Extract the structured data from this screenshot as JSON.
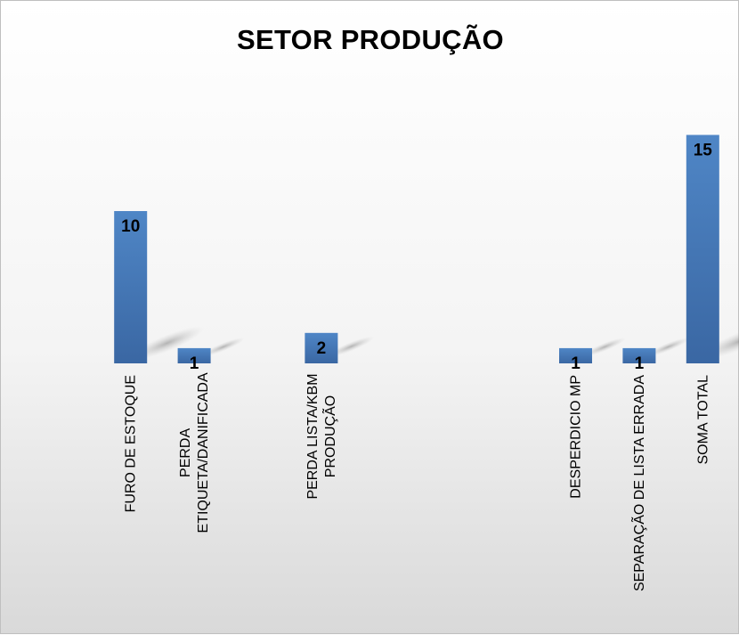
{
  "chart_data": {
    "type": "bar",
    "title": "SETOR PRODUÇÃO",
    "xlabel": "",
    "ylabel": "",
    "grid": false,
    "legend": "none",
    "ylim": [
      0,
      16
    ],
    "categories": [
      "FURO DE ESTOQUE",
      "PERDA ETIQUETA/DANIFICADA",
      "",
      "PERDA LISTA/KBM PRODUÇÃO",
      "",
      "",
      "",
      "DESPERDICIO MP",
      "SEPARAÇÃO DE LISTA ERRADA",
      "SOMA TOTAL"
    ],
    "category_lines": [
      [
        "FURO DE ESTOQUE"
      ],
      [
        "PERDA",
        "ETIQUETA/DANIFICADA"
      ],
      [],
      [
        "PERDA LISTA/KBM",
        "PRODUÇÃO"
      ],
      [],
      [],
      [],
      [
        "DESPERDICIO MP"
      ],
      [
        "SEPARAÇÃO DE LISTA ERRADA"
      ],
      [
        "SOMA TOTAL"
      ]
    ],
    "values": [
      10,
      1,
      null,
      2,
      null,
      null,
      null,
      1,
      1,
      15
    ],
    "bar_color": "#4a7ebb",
    "bar_color_dark": "#3a67a3"
  }
}
